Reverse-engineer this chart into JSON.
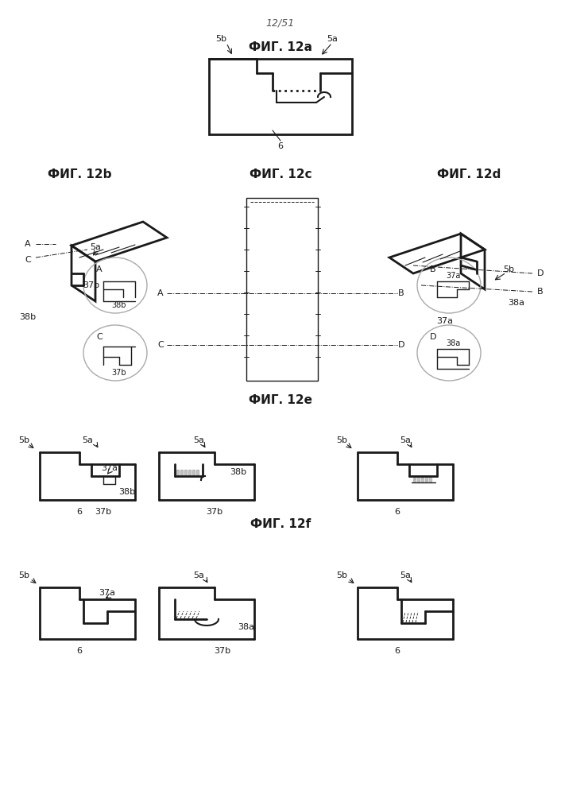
{
  "page_num": "12/51",
  "fig12a_title": "ФИГ. 12a",
  "fig12b_title": "ФИГ. 12b",
  "fig12c_title": "ФИГ. 12c",
  "fig12d_title": "ФИГ. 12d",
  "fig12e_title": "ФИГ. 12e",
  "fig12f_title": "ФИГ. 12f",
  "bg_color": "#ffffff",
  "line_color": "#1a1a1a",
  "title_fontsize": 11,
  "label_fontsize": 8,
  "page_fontsize": 9
}
